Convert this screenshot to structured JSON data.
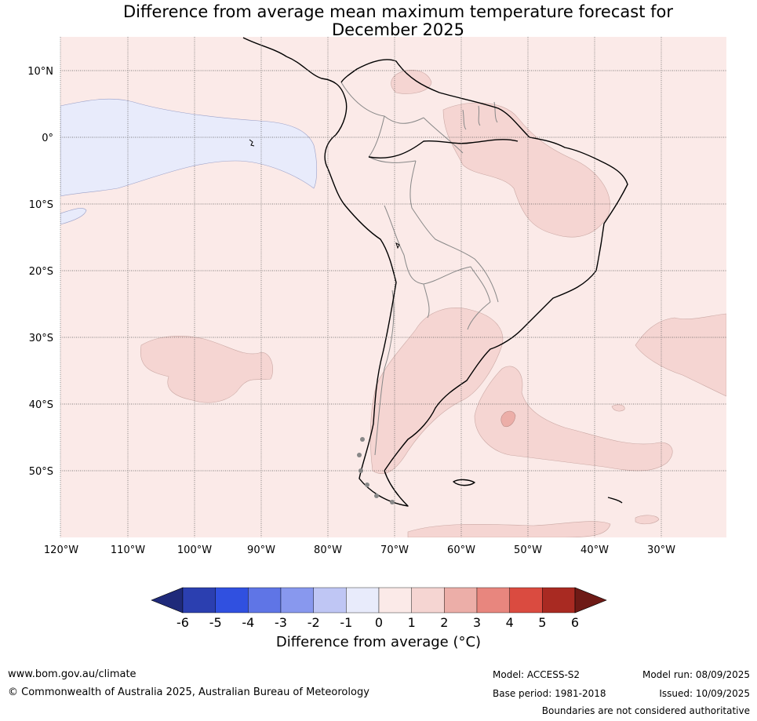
{
  "title_line1": "Difference from average mean maximum temperature forecast for",
  "title_line2": "December 2025",
  "map": {
    "lat_labels": [
      "10°N",
      "0°",
      "10°S",
      "20°S",
      "30°S",
      "40°S",
      "50°S"
    ],
    "lon_labels": [
      "120°W",
      "110°W",
      "100°W",
      "90°W",
      "80°W",
      "70°W",
      "60°W",
      "50°W",
      "40°W",
      "30°W"
    ]
  },
  "legend": {
    "label": "Difference from average (°C)",
    "ticks": [
      "-6",
      "-5",
      "-4",
      "-3",
      "-2",
      "-1",
      "0",
      "1",
      "2",
      "3",
      "4",
      "5",
      "6"
    ],
    "colors": [
      "#1f2a7a",
      "#2b3fb0",
      "#3050e0",
      "#5f75e6",
      "#8898ee",
      "#bfc6f4",
      "#e8ebfb",
      "#fbeae8",
      "#f5d5d2",
      "#ecaea8",
      "#e8867e",
      "#da4b40",
      "#a92a22",
      "#6e1a16"
    ]
  },
  "footer": {
    "website": "www.bom.gov.au/climate",
    "copyright": "© Commonwealth of Australia 2025, Australian Bureau of Meteorology",
    "model": "Model: ACCESS-S2",
    "base_period": "Base period: 1981-2018",
    "model_run": "Model run: 08/09/2025",
    "issued": "Issued: 10/09/2025",
    "disclaimer": "Boundaries are not considered authoritative"
  }
}
